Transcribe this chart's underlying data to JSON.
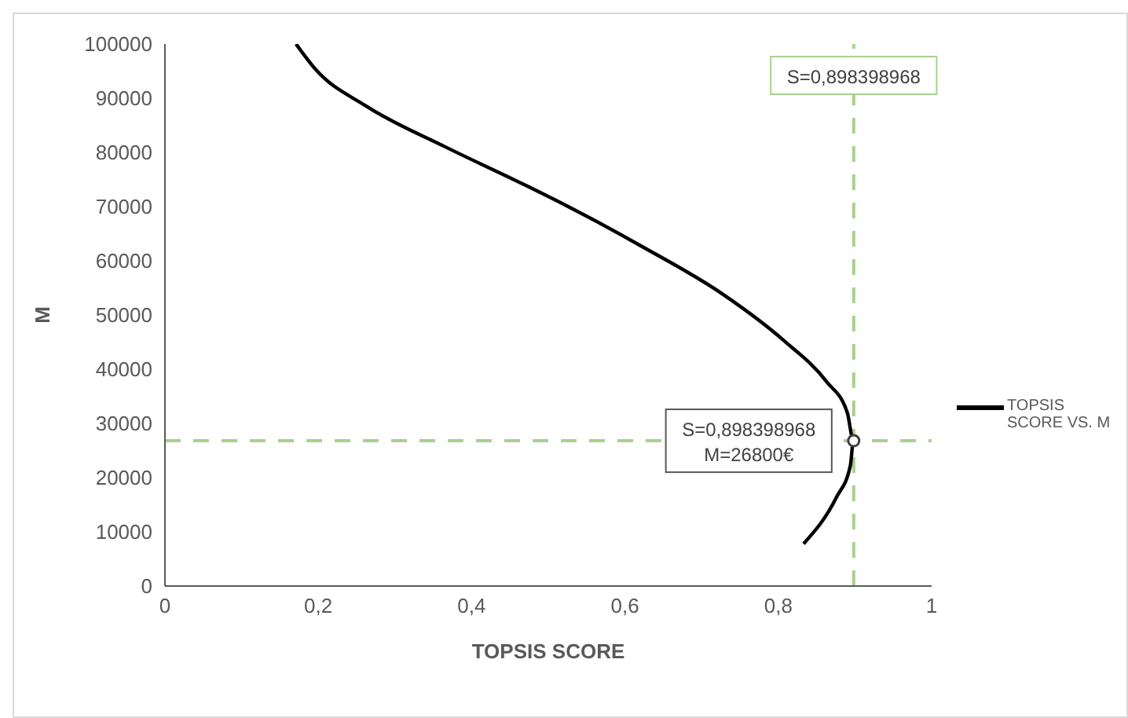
{
  "chart_data": {
    "type": "line",
    "xlabel": "TOPSIS SCORE",
    "ylabel": "M",
    "xlim": [
      0,
      1
    ],
    "xticks": [
      {
        "value": 0,
        "label": "0"
      },
      {
        "value": 0.2,
        "label": "0,2"
      },
      {
        "value": 0.4,
        "label": "0,4"
      },
      {
        "value": 0.6,
        "label": "0,6"
      },
      {
        "value": 0.8,
        "label": "0,8"
      },
      {
        "value": 1,
        "label": "1"
      }
    ],
    "ylim": [
      0,
      100000
    ],
    "yticks": [
      0,
      10000,
      20000,
      30000,
      40000,
      50000,
      60000,
      70000,
      80000,
      90000,
      100000
    ],
    "grid": false,
    "legend": "right",
    "marker": "none",
    "line_style": "solid",
    "series": [
      {
        "name": "TOPSIS SCORE VS. M",
        "color": "#000000",
        "x": [
          0.171,
          0.196,
          0.263,
          0.366,
          0.468,
          0.522,
          0.624,
          0.727,
          0.808,
          0.863,
          0.89,
          0.898,
          0.894,
          0.876,
          0.833
        ],
        "values": [
          100000,
          95400,
          88500,
          81000,
          74100,
          70300,
          62500,
          53900,
          45200,
          37700,
          32000,
          26800,
          22200,
          16400,
          7800
        ]
      }
    ],
    "ref_lines": [
      {
        "axis": "x",
        "value": 0.898398968,
        "label": "S=0,898398968",
        "color": "#a9d08e",
        "line_style": "dashed"
      },
      {
        "axis": "y",
        "value": 26800,
        "color": "#a9d08e",
        "line_style": "dashed"
      }
    ],
    "annotations": [
      {
        "text": "S=0,898398968\nM=26800€",
        "x": 0.898398968,
        "y": 26800
      }
    ]
  }
}
